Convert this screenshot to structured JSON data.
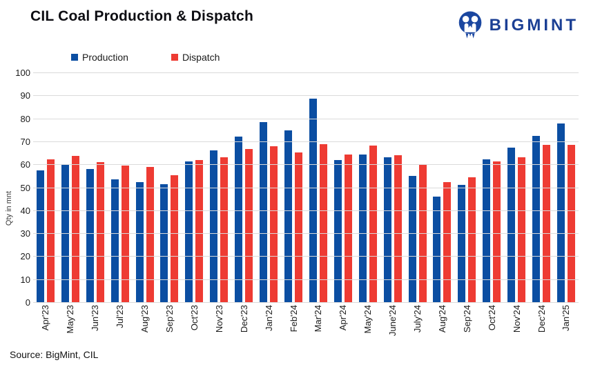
{
  "title": "CIL Coal Production & Dispatch",
  "logo": {
    "brand": "BIGMINT"
  },
  "source": "Source: BigMint, CIL",
  "colors": {
    "production": "#0b4ea2",
    "dispatch": "#ee3b33",
    "gridline": "#dadada",
    "logo_blue": "#1b3f94",
    "title_text": "#0d0d12"
  },
  "chart_data": {
    "type": "bar",
    "title": "CIL Coal Production & Dispatch",
    "xlabel": "",
    "ylabel": "Qty in mnt",
    "ylim": [
      0,
      100
    ],
    "ytick_step": 10,
    "grid": true,
    "legend_position": "top",
    "categories": [
      "Apr'23",
      "May'23",
      "Jun'23",
      "Jul'23",
      "Aug'23",
      "Sep'23",
      "Oct'23",
      "Nov'23",
      "Dec'23",
      "Jan'24",
      "Feb'24",
      "Mar'24",
      "Apr'24",
      "May'24",
      "June'24",
      "July'24",
      "Aug'24",
      "Sep'24",
      "Oct'24",
      "Nov'24",
      "Dec'24",
      "Jan'25"
    ],
    "series": [
      {
        "name": "Production",
        "color": "#0b4ea2",
        "values": [
          57.5,
          59.9,
          57.9,
          53.6,
          52.2,
          51.3,
          61.2,
          66.0,
          72.0,
          78.4,
          74.9,
          88.6,
          61.8,
          64.3,
          63.1,
          55.0,
          46.0,
          51.0,
          62.3,
          67.2,
          72.4,
          77.8
        ]
      },
      {
        "name": "Dispatch",
        "color": "#ee3b33",
        "values": [
          62.3,
          63.8,
          61.1,
          59.4,
          59.0,
          55.3,
          61.8,
          63.0,
          66.6,
          67.8,
          65.3,
          68.9,
          64.4,
          68.3,
          64.1,
          59.7,
          52.3,
          54.4,
          61.4,
          63.1,
          68.6,
          68.4
        ]
      }
    ]
  }
}
